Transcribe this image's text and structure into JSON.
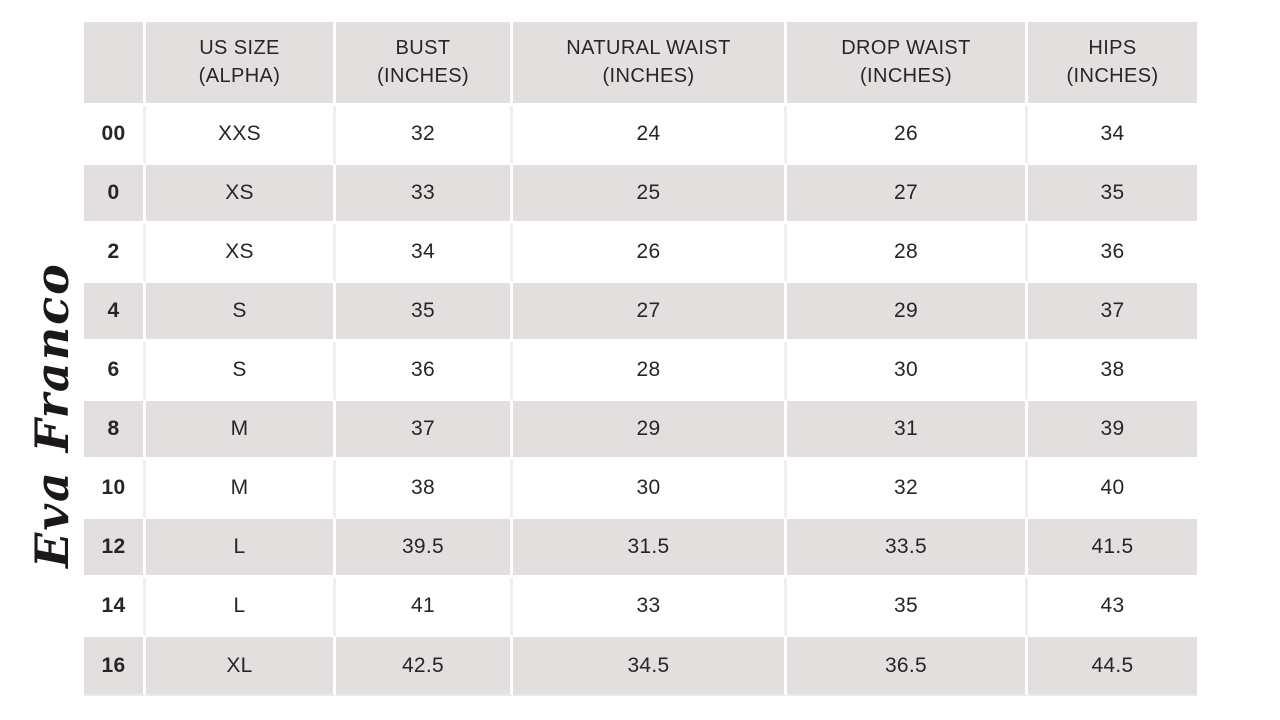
{
  "colors": {
    "background": "#ffffff",
    "stripe": "#e3dfde",
    "gutter": "#ffffff",
    "divider_on_white": "#f1eeed",
    "text": "#292425",
    "logo_ink": "#1c1819"
  },
  "logo": {
    "text": "Eva Franco"
  },
  "table": {
    "headers": [
      "",
      "US SIZE\n(ALPHA)",
      "BUST\n(INCHES)",
      "NATURAL WAIST\n(INCHES)",
      "DROP WAIST\n(INCHES)",
      "HIPS\n(INCHES)"
    ],
    "rows": [
      [
        "00",
        "XXS",
        "32",
        "24",
        "26",
        "34"
      ],
      [
        "0",
        "XS",
        "33",
        "25",
        "27",
        "35"
      ],
      [
        "2",
        "XS",
        "34",
        "26",
        "28",
        "36"
      ],
      [
        "4",
        "S",
        "35",
        "27",
        "29",
        "37"
      ],
      [
        "6",
        "S",
        "36",
        "28",
        "30",
        "38"
      ],
      [
        "8",
        "M",
        "37",
        "29",
        "31",
        "39"
      ],
      [
        "10",
        "M",
        "38",
        "30",
        "32",
        "40"
      ],
      [
        "12",
        "L",
        "39.5",
        "31.5",
        "33.5",
        "41.5"
      ],
      [
        "14",
        "L",
        "41",
        "33",
        "35",
        "43"
      ],
      [
        "16",
        "XL",
        "42.5",
        "34.5",
        "36.5",
        "44.5"
      ]
    ]
  },
  "chart_data": {
    "type": "table",
    "columns": [
      "",
      "US SIZE (ALPHA)",
      "BUST (INCHES)",
      "NATURAL WAIST (INCHES)",
      "DROP WAIST (INCHES)",
      "HIPS (INCHES)"
    ],
    "rows": [
      [
        "00",
        "XXS",
        32,
        24,
        26,
        34
      ],
      [
        "0",
        "XS",
        33,
        25,
        27,
        35
      ],
      [
        "2",
        "XS",
        34,
        26,
        28,
        36
      ],
      [
        "4",
        "S",
        35,
        27,
        29,
        37
      ],
      [
        "6",
        "S",
        36,
        28,
        30,
        38
      ],
      [
        "8",
        "M",
        37,
        29,
        31,
        39
      ],
      [
        "10",
        "M",
        38,
        30,
        32,
        40
      ],
      [
        "12",
        "L",
        39.5,
        31.5,
        33.5,
        41.5
      ],
      [
        "14",
        "L",
        41,
        33,
        35,
        43
      ],
      [
        "16",
        "XL",
        42.5,
        34.5,
        36.5,
        44.5
      ]
    ],
    "legend_position": "none",
    "grid": false
  }
}
